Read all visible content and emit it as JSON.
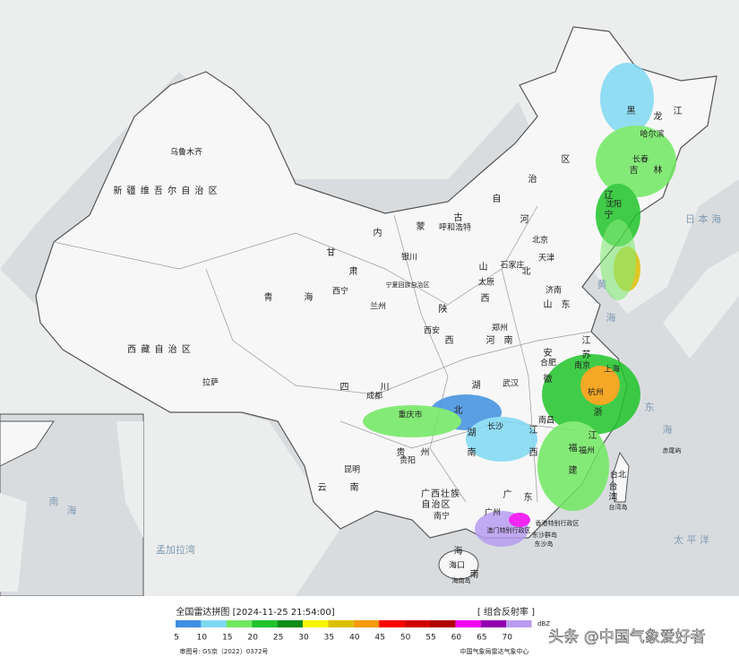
{
  "map": {
    "labels": [
      "乌鲁木齐",
      "新 疆 维 吾 尔 自 治 区",
      "西 藏 自 治 区",
      "拉萨",
      "青",
      "海",
      "西宁",
      "甘",
      "肃",
      "兰州",
      "内",
      "蒙",
      "古",
      "呼和浩特",
      "银川",
      "宁夏回族自治区",
      "北京",
      "天津",
      "石家庄",
      "太原",
      "山",
      "西",
      "河",
      "北",
      "济南",
      "山",
      "东",
      "郑州",
      "河",
      "南",
      "西安",
      "陕",
      "西",
      "四",
      "川",
      "成都",
      "重庆市",
      "湖",
      "北",
      "武汉",
      "安",
      "徽",
      "合肥",
      "江",
      "苏",
      "南京",
      "上海",
      "浙",
      "江",
      "杭州",
      "湖",
      "南",
      "长沙",
      "江",
      "西",
      "南昌",
      "福",
      "建",
      "福州",
      "台北",
      "台",
      "湾",
      "台湾岛",
      "贵",
      "州",
      "贵阳",
      "云",
      "南",
      "昆明",
      "广西壮族",
      "自治区",
      "南宁",
      "广",
      "东",
      "广州",
      "香港特别行政区",
      "澳门特别行政区",
      "海",
      "南",
      "海口",
      "海南岛",
      "东沙群岛",
      "东沙岛",
      "赤尾屿",
      "日 本 海",
      "太 平 洋",
      "孟加拉湾",
      "黑",
      "龙",
      "江",
      "哈尔滨",
      "吉",
      "林",
      "长春",
      "辽",
      "宁",
      "沈阳",
      "自",
      "治",
      "区",
      "黄",
      "海",
      "东",
      "海",
      "南",
      "海"
    ]
  },
  "footer": {
    "title": "全国雷达拼图 [2024-11-25 21:54:00]",
    "product": "[ 组合反射率 ]",
    "unit": "dBZ",
    "approval": "审图号: GS京（2022）0372号",
    "issuer": "中国气象局雷达气象中心",
    "watermark": "头条 @中国气象爱好者"
  },
  "legend": {
    "items": [
      {
        "value": 5,
        "color": "#3f8fe0"
      },
      {
        "value": 10,
        "color": "#7fd8f2"
      },
      {
        "value": 15,
        "color": "#70e860"
      },
      {
        "value": 20,
        "color": "#1fc42a"
      },
      {
        "value": 25,
        "color": "#0e8c18"
      },
      {
        "value": 30,
        "color": "#f6f600"
      },
      {
        "value": 35,
        "color": "#dcc000"
      },
      {
        "value": 40,
        "color": "#f59a00"
      },
      {
        "value": 45,
        "color": "#fb0000"
      },
      {
        "value": 50,
        "color": "#d00000"
      },
      {
        "value": 55,
        "color": "#b00000"
      },
      {
        "value": 60,
        "color": "#f400f4"
      },
      {
        "value": 65,
        "color": "#9400b0"
      },
      {
        "value": 70,
        "color": "#b79cf0"
      }
    ]
  }
}
